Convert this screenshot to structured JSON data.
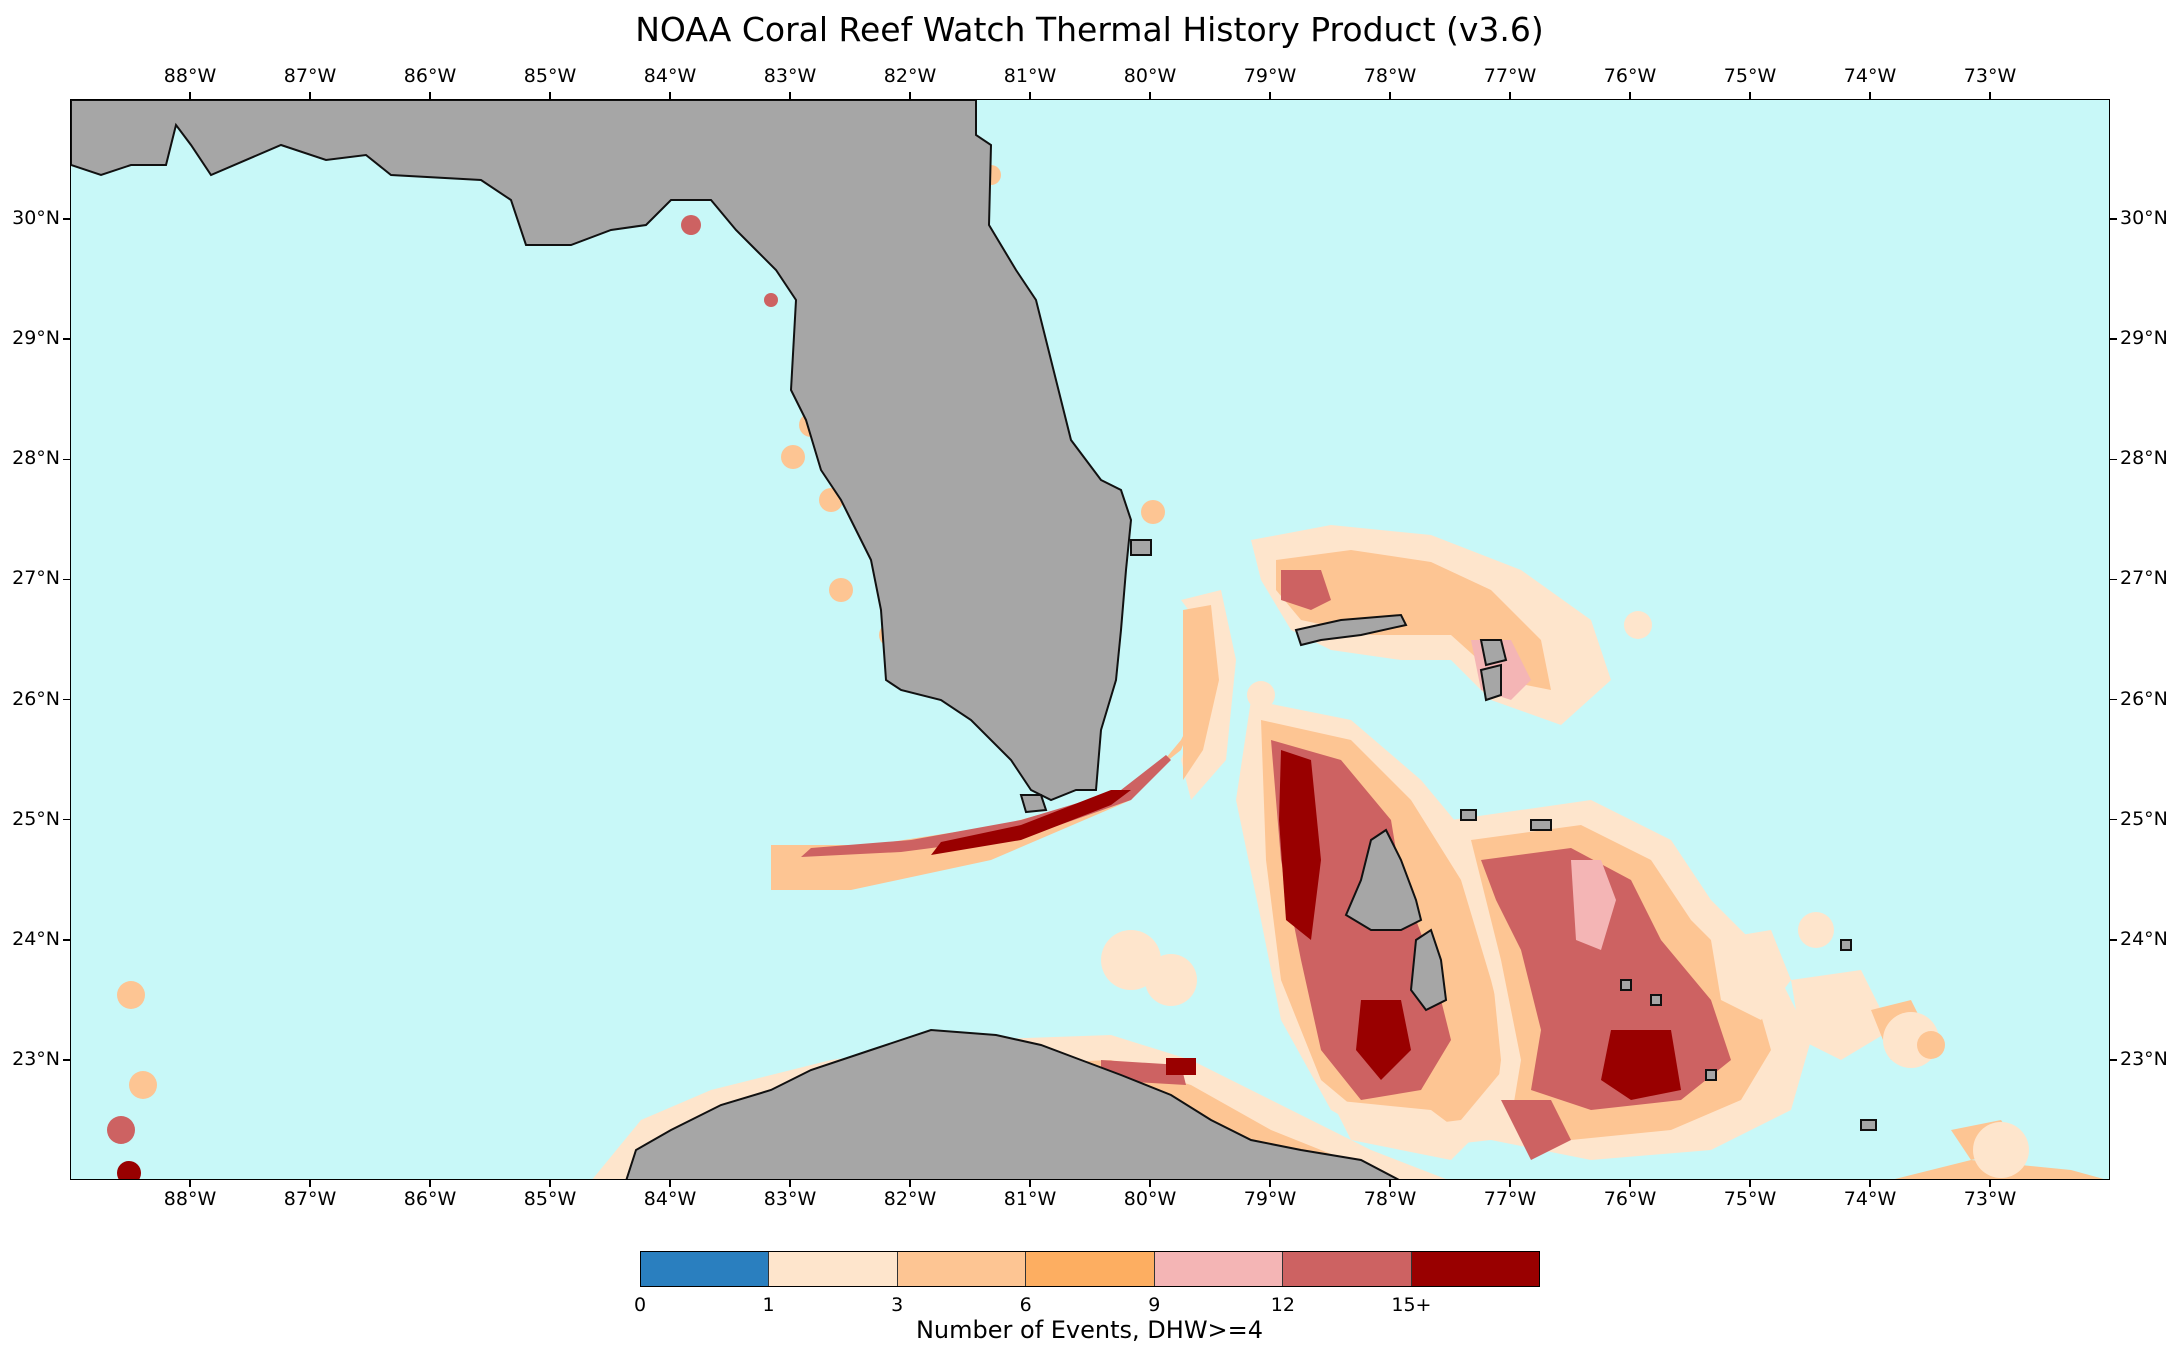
{
  "title": "NOAA Coral Reef Watch Thermal History Product (v3.6)",
  "map": {
    "lon_range": [
      -89.0,
      -72.0
    ],
    "lat_range": [
      22.0,
      31.0
    ],
    "lon_ticks": [
      "88°W",
      "87°W",
      "86°W",
      "85°W",
      "84°W",
      "83°W",
      "82°W",
      "81°W",
      "80°W",
      "79°W",
      "78°W",
      "77°W",
      "76°W",
      "75°W",
      "74°W",
      "73°W"
    ],
    "lat_ticks": [
      "30°N",
      "29°N",
      "28°N",
      "27°N",
      "26°N",
      "25°N",
      "24°N",
      "23°N"
    ],
    "colors": {
      "ocean": "#c8f8f8",
      "land": "#a6a6a6",
      "coast": "#111111"
    }
  },
  "colorbar": {
    "title": "Number of Events, DHW>=4",
    "tick_labels": [
      "0",
      "1",
      "3",
      "6",
      "9",
      "12",
      "15+"
    ],
    "colors": [
      "#2a7fbf",
      "#fee5cc",
      "#fdc593",
      "#fdae61",
      "#f4b5b5",
      "#cd6262",
      "#990000"
    ]
  }
}
